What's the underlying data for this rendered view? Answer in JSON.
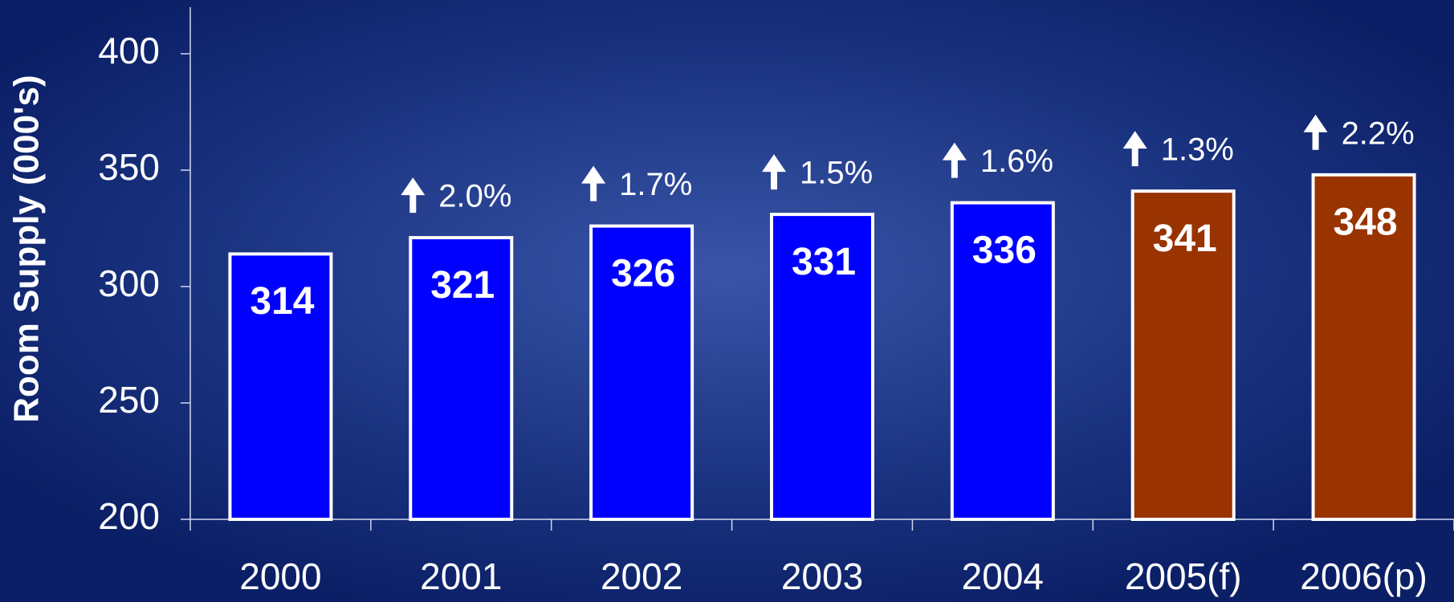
{
  "chart_data": {
    "type": "bar",
    "y_label": "Room Supply (000's)",
    "categories": [
      "2000",
      "2001",
      "2002",
      "2003",
      "2004",
      "2005(f)",
      "2006(p)"
    ],
    "values": [
      314,
      321,
      326,
      331,
      336,
      341,
      348
    ],
    "colors": [
      "#0000ff",
      "#0000ff",
      "#0000ff",
      "#0000ff",
      "#0000ff",
      "#993300",
      "#993300"
    ],
    "growth": [
      null,
      2.0,
      1.7,
      1.5,
      1.6,
      1.3,
      2.2
    ],
    "growth_labels": [
      null,
      "2.0%",
      "1.7%",
      "1.5%",
      "1.6%",
      "1.3%",
      "2.2%"
    ],
    "ylim": [
      200,
      420
    ],
    "yticks": [
      200,
      250,
      300,
      350,
      400
    ]
  }
}
